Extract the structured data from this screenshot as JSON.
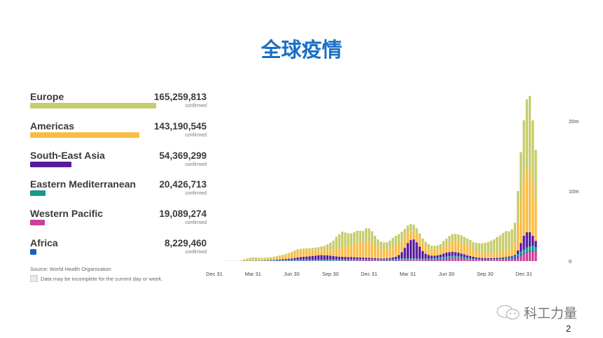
{
  "title": "全球疫情",
  "regions": [
    {
      "name": "Europe",
      "value": "165,259,813",
      "count": 165259813,
      "unit": "confirmed",
      "color": "#c6cc6b"
    },
    {
      "name": "Americas",
      "value": "143,190,545",
      "count": 143190545,
      "unit": "confirmed",
      "color": "#f9bc45"
    },
    {
      "name": "South-East Asia",
      "value": "54,369,299",
      "count": 54369299,
      "unit": "confirmed",
      "color": "#5a1a9e"
    },
    {
      "name": "Eastern Mediterranean",
      "value": "20,426,713",
      "count": 20426713,
      "unit": "confirmed",
      "color": "#17998c"
    },
    {
      "name": "Western Pacific",
      "value": "19,089,274",
      "count": 19089274,
      "unit": "confirmed",
      "color": "#cc3f9b"
    },
    {
      "name": "Africa",
      "value": "8,229,460",
      "count": 8229460,
      "unit": "confirmed",
      "color": "#1a62c0"
    }
  ],
  "source": "Source: World Health Organization",
  "note": "Data may be incomplete for the current day or week.",
  "brand": "科工力量",
  "page_number": "2",
  "chart_data": {
    "type": "bar",
    "stacked": true,
    "unit": "million cases per week",
    "ylim": [
      0,
      24
    ],
    "y_ticks": [
      {
        "value": 0,
        "label": "0"
      },
      {
        "value": 10,
        "label": "10m"
      },
      {
        "value": 20,
        "label": "20m"
      }
    ],
    "y_axis_side": "right",
    "x_ticks": [
      "Dec 31",
      "Mar 31",
      "Jun 30",
      "Sep 30",
      "Dec 31",
      "Mar 31",
      "Jun 30",
      "Sep 30",
      "Dec 31"
    ],
    "grid": false,
    "series": [
      {
        "name": "Western Pacific",
        "color": "#cc3f9b",
        "values": [
          0,
          0,
          0,
          0.01,
          0.02,
          0.02,
          0.01,
          0.01,
          0.01,
          0.01,
          0.01,
          0.01,
          0.02,
          0.02,
          0.02,
          0.01,
          0.01,
          0.01,
          0.01,
          0.01,
          0.01,
          0.01,
          0.01,
          0.01,
          0.01,
          0.02,
          0.02,
          0.03,
          0.03,
          0.04,
          0.04,
          0.04,
          0.03,
          0.03,
          0.03,
          0.03,
          0.03,
          0.03,
          0.03,
          0.03,
          0.03,
          0.03,
          0.03,
          0.04,
          0.05,
          0.06,
          0.07,
          0.08,
          0.09,
          0.1,
          0.1,
          0.1,
          0.1,
          0.1,
          0.09,
          0.08,
          0.07,
          0.06,
          0.06,
          0.06,
          0.06,
          0.06,
          0.07,
          0.08,
          0.09,
          0.1,
          0.12,
          0.13,
          0.13,
          0.12,
          0.1,
          0.1,
          0.1,
          0.1,
          0.12,
          0.15,
          0.2,
          0.25,
          0.3,
          0.35,
          0.4,
          0.4,
          0.4,
          0.35,
          0.3,
          0.25,
          0.2,
          0.17,
          0.15,
          0.13,
          0.12,
          0.12,
          0.12,
          0.13,
          0.14,
          0.16,
          0.18,
          0.2,
          0.22,
          0.24,
          0.26,
          0.3,
          0.5,
          0.8,
          1.0,
          1.2,
          1.3,
          1.4,
          1.3
        ]
      },
      {
        "name": "Africa",
        "color": "#1a62c0",
        "values": [
          0,
          0,
          0,
          0,
          0,
          0,
          0,
          0,
          0,
          0,
          0,
          0,
          0,
          0.01,
          0.01,
          0.01,
          0.01,
          0.02,
          0.02,
          0.03,
          0.03,
          0.04,
          0.04,
          0.05,
          0.06,
          0.07,
          0.08,
          0.09,
          0.1,
          0.1,
          0.09,
          0.08,
          0.07,
          0.05,
          0.04,
          0.04,
          0.04,
          0.04,
          0.03,
          0.03,
          0.03,
          0.03,
          0.03,
          0.03,
          0.04,
          0.04,
          0.05,
          0.05,
          0.06,
          0.07,
          0.08,
          0.09,
          0.09,
          0.08,
          0.07,
          0.06,
          0.05,
          0.04,
          0.04,
          0.04,
          0.04,
          0.04,
          0.04,
          0.04,
          0.04,
          0.04,
          0.04,
          0.04,
          0.05,
          0.06,
          0.07,
          0.09,
          0.11,
          0.13,
          0.14,
          0.14,
          0.13,
          0.12,
          0.1,
          0.09,
          0.08,
          0.07,
          0.06,
          0.05,
          0.05,
          0.04,
          0.04,
          0.04,
          0.03,
          0.03,
          0.03,
          0.03,
          0.03,
          0.03,
          0.03,
          0.03,
          0.04,
          0.06,
          0.1,
          0.15,
          0.2,
          0.25,
          0.2,
          0.15,
          0.12,
          0.12,
          0.1,
          0.1,
          0.08
        ]
      },
      {
        "name": "Eastern Mediterranean",
        "color": "#17998c",
        "values": [
          0,
          0,
          0,
          0,
          0,
          0,
          0,
          0,
          0.01,
          0.02,
          0.03,
          0.03,
          0.03,
          0.03,
          0.04,
          0.04,
          0.05,
          0.05,
          0.06,
          0.07,
          0.08,
          0.08,
          0.08,
          0.07,
          0.07,
          0.07,
          0.07,
          0.07,
          0.07,
          0.07,
          0.07,
          0.07,
          0.08,
          0.09,
          0.1,
          0.11,
          0.12,
          0.13,
          0.14,
          0.15,
          0.15,
          0.16,
          0.16,
          0.16,
          0.15,
          0.15,
          0.14,
          0.13,
          0.12,
          0.11,
          0.1,
          0.1,
          0.1,
          0.1,
          0.1,
          0.11,
          0.12,
          0.14,
          0.16,
          0.18,
          0.2,
          0.22,
          0.24,
          0.25,
          0.25,
          0.24,
          0.23,
          0.22,
          0.2,
          0.18,
          0.16,
          0.15,
          0.14,
          0.14,
          0.15,
          0.16,
          0.18,
          0.2,
          0.22,
          0.24,
          0.25,
          0.25,
          0.24,
          0.22,
          0.2,
          0.18,
          0.16,
          0.14,
          0.12,
          0.11,
          0.1,
          0.1,
          0.1,
          0.1,
          0.1,
          0.1,
          0.1,
          0.1,
          0.1,
          0.1,
          0.1,
          0.12,
          0.3,
          0.4,
          0.5,
          0.6,
          0.7,
          0.7,
          0.6
        ]
      },
      {
        "name": "South-East Asia",
        "color": "#5a1a9e",
        "values": [
          0,
          0,
          0,
          0,
          0,
          0,
          0,
          0,
          0,
          0,
          0,
          0,
          0,
          0,
          0.01,
          0.01,
          0.02,
          0.02,
          0.03,
          0.04,
          0.05,
          0.07,
          0.1,
          0.12,
          0.15,
          0.17,
          0.2,
          0.25,
          0.3,
          0.35,
          0.4,
          0.45,
          0.5,
          0.55,
          0.6,
          0.65,
          0.65,
          0.62,
          0.6,
          0.55,
          0.5,
          0.45,
          0.4,
          0.37,
          0.35,
          0.32,
          0.3,
          0.28,
          0.25,
          0.22,
          0.2,
          0.19,
          0.18,
          0.16,
          0.15,
          0.13,
          0.12,
          0.12,
          0.13,
          0.15,
          0.2,
          0.3,
          0.5,
          0.9,
          1.5,
          2.2,
          2.6,
          2.7,
          2.3,
          1.7,
          1.1,
          0.7,
          0.5,
          0.4,
          0.35,
          0.35,
          0.4,
          0.5,
          0.6,
          0.6,
          0.6,
          0.55,
          0.5,
          0.45,
          0.4,
          0.35,
          0.3,
          0.25,
          0.2,
          0.2,
          0.18,
          0.17,
          0.16,
          0.15,
          0.15,
          0.15,
          0.15,
          0.15,
          0.15,
          0.15,
          0.15,
          0.2,
          0.5,
          1.2,
          2.0,
          2.2,
          2.0,
          1.4,
          0.9
        ]
      },
      {
        "name": "Americas",
        "color": "#f9bc45",
        "values": [
          0,
          0,
          0,
          0,
          0,
          0,
          0,
          0,
          0,
          0,
          0.05,
          0.1,
          0.15,
          0.2,
          0.2,
          0.2,
          0.22,
          0.25,
          0.28,
          0.3,
          0.35,
          0.4,
          0.45,
          0.5,
          0.6,
          0.7,
          0.8,
          0.9,
          1.0,
          1.0,
          1.0,
          0.95,
          0.9,
          0.85,
          0.8,
          0.75,
          0.75,
          0.75,
          0.8,
          0.85,
          0.9,
          1.0,
          1.2,
          1.4,
          1.5,
          1.6,
          1.7,
          1.9,
          2.0,
          2.1,
          2.2,
          2.3,
          2.4,
          2.2,
          1.9,
          1.6,
          1.4,
          1.3,
          1.2,
          1.3,
          1.5,
          1.6,
          1.6,
          1.6,
          1.5,
          1.4,
          1.3,
          1.2,
          1.2,
          1.2,
          1.2,
          1.2,
          1.1,
          1.0,
          1.0,
          0.9,
          0.9,
          1.0,
          1.1,
          1.3,
          1.4,
          1.5,
          1.5,
          1.5,
          1.4,
          1.3,
          1.2,
          1.0,
          0.9,
          0.8,
          0.7,
          0.7,
          0.7,
          0.7,
          0.7,
          0.7,
          0.7,
          0.8,
          0.9,
          1.0,
          1.3,
          1.8,
          4.0,
          6.5,
          8.0,
          9.0,
          9.0,
          7.5,
          6.0
        ]
      },
      {
        "name": "Europe",
        "color": "#c6cc6b",
        "values": [
          0,
          0,
          0,
          0,
          0,
          0,
          0,
          0,
          0.01,
          0.05,
          0.15,
          0.22,
          0.26,
          0.27,
          0.24,
          0.2,
          0.16,
          0.13,
          0.11,
          0.1,
          0.1,
          0.1,
          0.11,
          0.12,
          0.13,
          0.14,
          0.15,
          0.16,
          0.17,
          0.18,
          0.2,
          0.22,
          0.25,
          0.3,
          0.35,
          0.4,
          0.5,
          0.6,
          0.8,
          1.0,
          1.3,
          1.8,
          2.0,
          2.2,
          2.0,
          1.8,
          1.7,
          1.7,
          1.8,
          1.7,
          1.6,
          1.9,
          1.8,
          1.6,
          1.3,
          1.1,
          1.0,
          1.0,
          1.1,
          1.2,
          1.3,
          1.4,
          1.4,
          1.3,
          1.2,
          1.1,
          1.0,
          0.9,
          0.8,
          0.7,
          0.6,
          0.5,
          0.45,
          0.4,
          0.4,
          0.5,
          0.6,
          0.8,
          0.9,
          1.0,
          1.1,
          1.1,
          1.1,
          1.1,
          1.1,
          1.1,
          1.1,
          1.1,
          1.2,
          1.3,
          1.4,
          1.5,
          1.6,
          1.8,
          2.0,
          2.3,
          2.5,
          2.7,
          2.8,
          2.6,
          2.5,
          2.8,
          4.5,
          6.5,
          8.5,
          10.0,
          10.5,
          9.0,
          7.0
        ]
      }
    ]
  }
}
